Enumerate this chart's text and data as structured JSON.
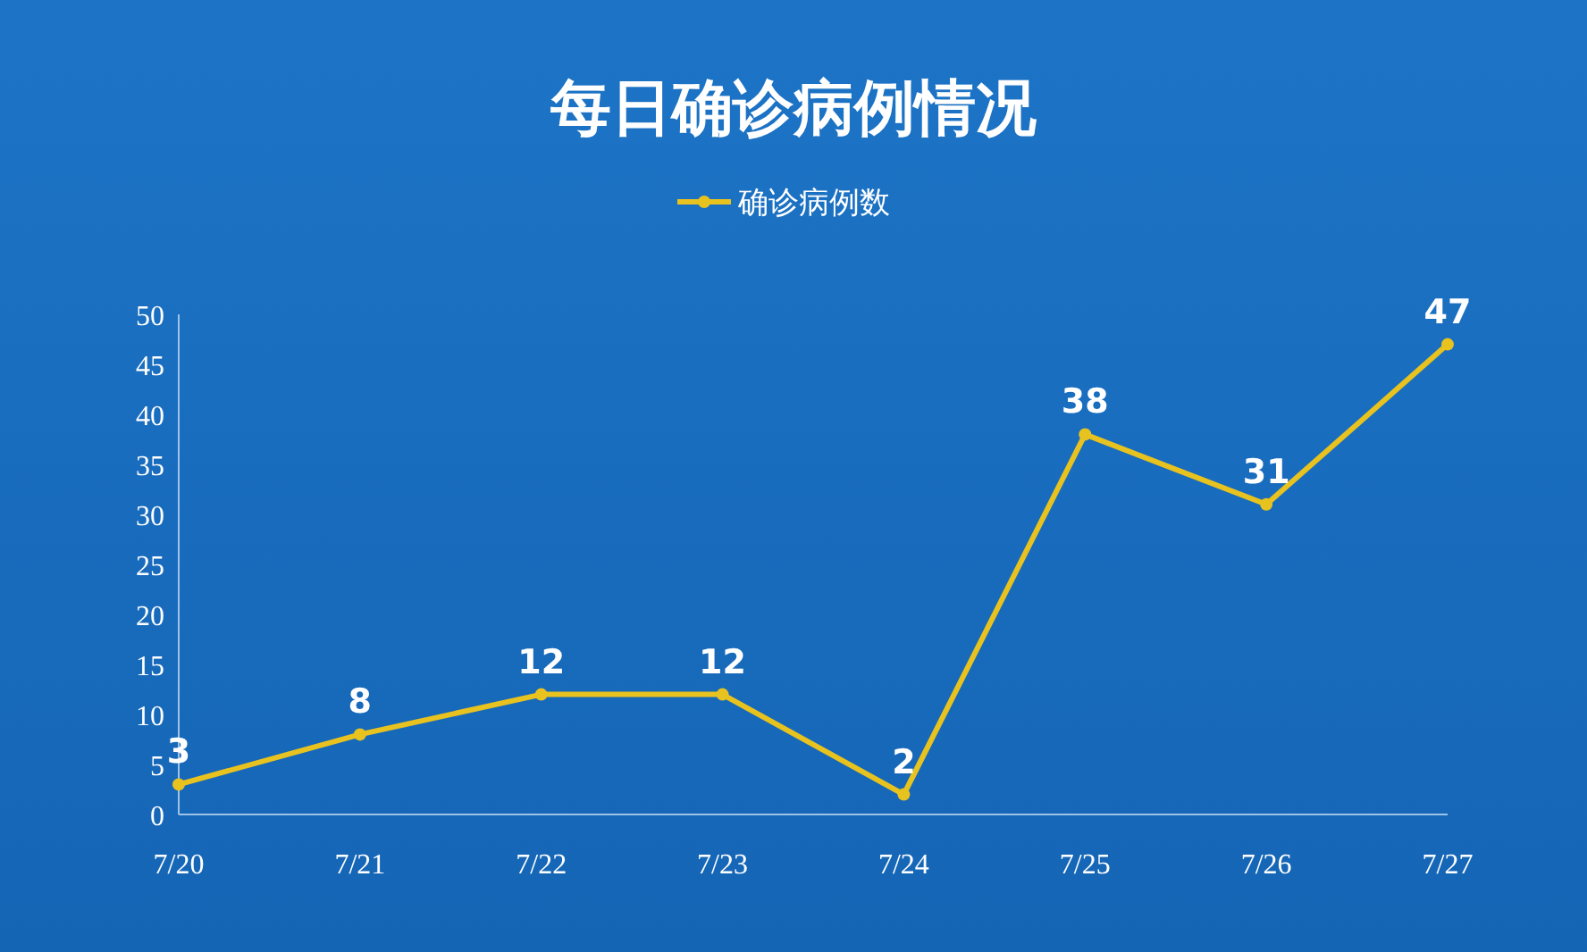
{
  "chart_data": {
    "type": "line",
    "title": "每日确诊病例情况",
    "categories": [
      "7/20",
      "7/21",
      "7/22",
      "7/23",
      "7/24",
      "7/25",
      "7/26",
      "7/27"
    ],
    "series": [
      {
        "name": "确诊病例数",
        "color": "#e8c21e",
        "values": [
          3,
          8,
          12,
          12,
          2,
          38,
          31,
          47
        ]
      }
    ],
    "ylim": [
      0,
      50
    ],
    "yticks": [
      0,
      5,
      10,
      15,
      20,
      25,
      30,
      35,
      40,
      45,
      50
    ],
    "data_labels": true,
    "legend": "top",
    "marker": "circle",
    "line_style": "solid",
    "grid": false
  }
}
